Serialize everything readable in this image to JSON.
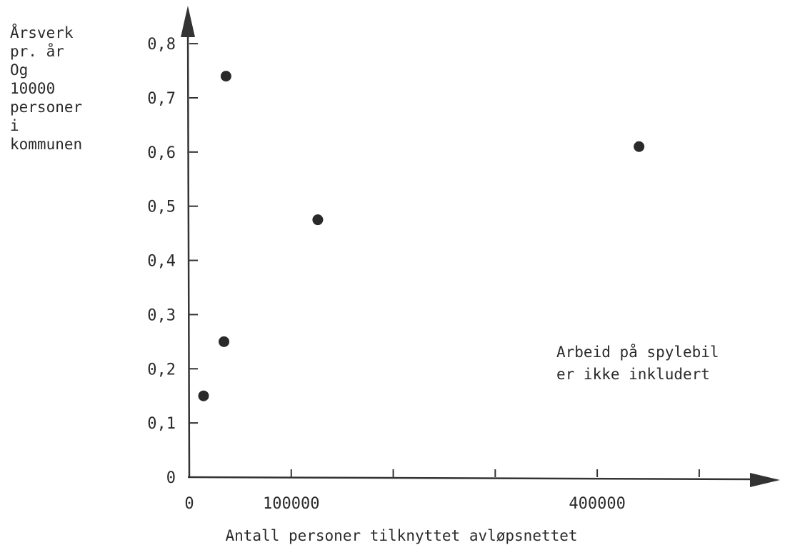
{
  "chart_data": {
    "type": "scatter",
    "title": "",
    "ylabel_lines": [
      "Årsverk",
      "pr. år",
      "Og",
      "10000",
      "personer",
      "i",
      "kommunen"
    ],
    "xlabel": "Antall personer tilknyttet avløpsnettet",
    "annotation_lines": [
      "Arbeid på spylebil",
      "er ikke inkludert"
    ],
    "xlim": [
      0,
      540000
    ],
    "ylim": [
      0,
      0.87
    ],
    "x_ticks": [
      0,
      100000,
      200000,
      300000,
      400000,
      500000
    ],
    "x_tick_labels": [
      "0",
      "100000",
      "",
      "",
      "400000",
      ""
    ],
    "y_ticks": [
      0,
      0.1,
      0.2,
      0.3,
      0.4,
      0.5,
      0.6,
      0.7,
      0.8
    ],
    "y_tick_labels": [
      "0",
      "0,1",
      "0,2",
      "0,3",
      "0,4",
      "0,5",
      "0,6",
      "0,7",
      "0,8"
    ],
    "grid": false,
    "colors": {
      "axis": "#333333",
      "marker": "#2a2a2a",
      "text": "#2b2b2b"
    },
    "points": [
      {
        "x": 14000,
        "y": 0.15
      },
      {
        "x": 34000,
        "y": 0.25
      },
      {
        "x": 36000,
        "y": 0.74
      },
      {
        "x": 126000,
        "y": 0.475
      },
      {
        "x": 441000,
        "y": 0.61
      }
    ]
  }
}
